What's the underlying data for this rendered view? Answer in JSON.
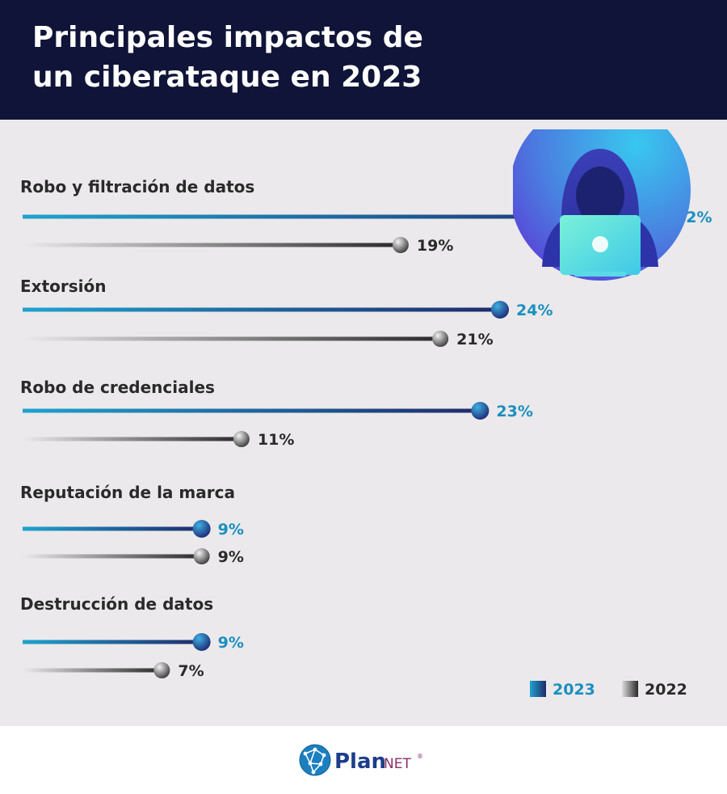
{
  "header": {
    "title_line1": "Principales impactos de",
    "title_line2": "un ciberataque en 2023"
  },
  "colors": {
    "header_bg": "#0f1438",
    "panel_bg": "#ebe9eb",
    "series_2023_start": "#1fa3cf",
    "series_2023_end": "#1f2a6b",
    "series_2022_start": "#ebe9eb",
    "series_2022_end": "#2a2a2a",
    "label_2023": "#1b8fc0",
    "label_2022": "#2a2a2a",
    "badge_outer": "#5a3fd6",
    "badge_inner": "#38c8ef"
  },
  "icons": {
    "badge": "hooded-hacker-laptop-icon",
    "logo": "globe-network-icon"
  },
  "logo": {
    "text_bold": "Plan",
    "text_light": "NET",
    "mark": "®"
  },
  "chart_data": {
    "type": "bar",
    "orientation": "horizontal",
    "categories": [
      "Robo y filtración de datos",
      "Extorsión",
      "Robo de credenciales",
      "Reputación de la marca",
      "Destrucción de datos"
    ],
    "series": [
      {
        "name": "2023",
        "values": [
          32,
          24,
          23,
          9,
          9
        ],
        "labels": [
          "32%",
          "24%",
          "23%",
          "9%",
          "9%"
        ]
      },
      {
        "name": "2022",
        "values": [
          19,
          21,
          11,
          9,
          7
        ],
        "labels": [
          "19%",
          "21%",
          "11%",
          "9%",
          "7%"
        ]
      }
    ],
    "unit": "%",
    "xlim": [
      0,
      32
    ],
    "grid": false,
    "legend": "bottom-right"
  }
}
